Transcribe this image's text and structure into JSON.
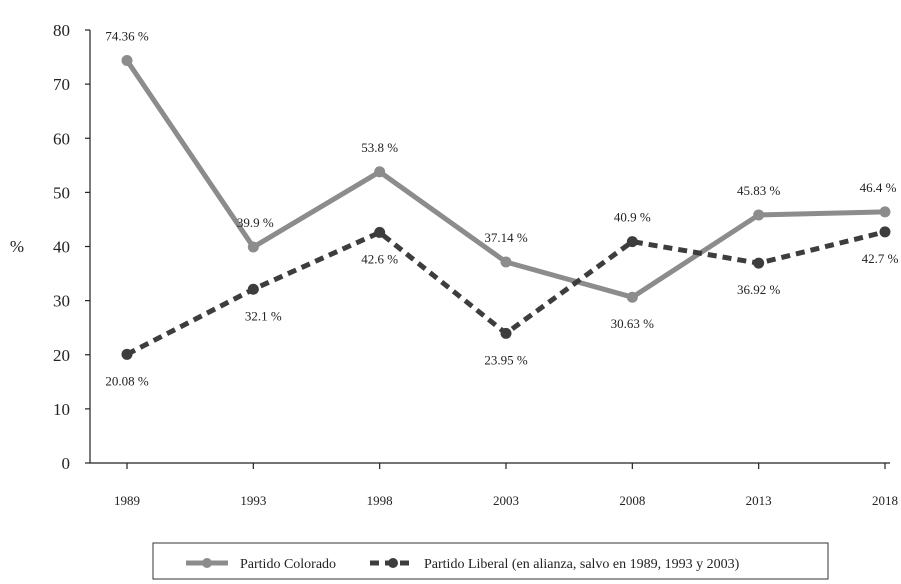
{
  "chart_data": {
    "type": "line",
    "title": "",
    "xlabel": "",
    "ylabel": "%",
    "ylim": [
      0,
      80
    ],
    "yticks": [
      "0",
      "10",
      "20",
      "30",
      "40",
      "50",
      "60",
      "70",
      "80"
    ],
    "categories": [
      "1989",
      "1993",
      "1998",
      "2003",
      "2008",
      "2013",
      "2018"
    ],
    "grid": false,
    "legend": "bottom",
    "series": [
      {
        "name": "Partido Colorado",
        "values": [
          74.36,
          39.9,
          53.8,
          37.14,
          30.63,
          45.83,
          46.4
        ],
        "labels": [
          "74.36 %",
          "39.9 %",
          "53.8 %",
          "37.14 %",
          "30.63 %",
          "45.83 %",
          "46.4 %"
        ],
        "color": "#8c8c8c",
        "style": "solid"
      },
      {
        "name": "Partido Liberal (en alianza, salvo en 1989, 1993 y 2003)",
        "values": [
          20.08,
          32.1,
          42.6,
          23.95,
          40.9,
          36.92,
          42.7
        ],
        "labels": [
          "20.08 %",
          "32.1 %",
          "42.6 %",
          "23.95 %",
          "40.9 %",
          "36.92 %",
          "42.7 %"
        ],
        "color": "#3d3d3d",
        "style": "dashed"
      }
    ]
  }
}
